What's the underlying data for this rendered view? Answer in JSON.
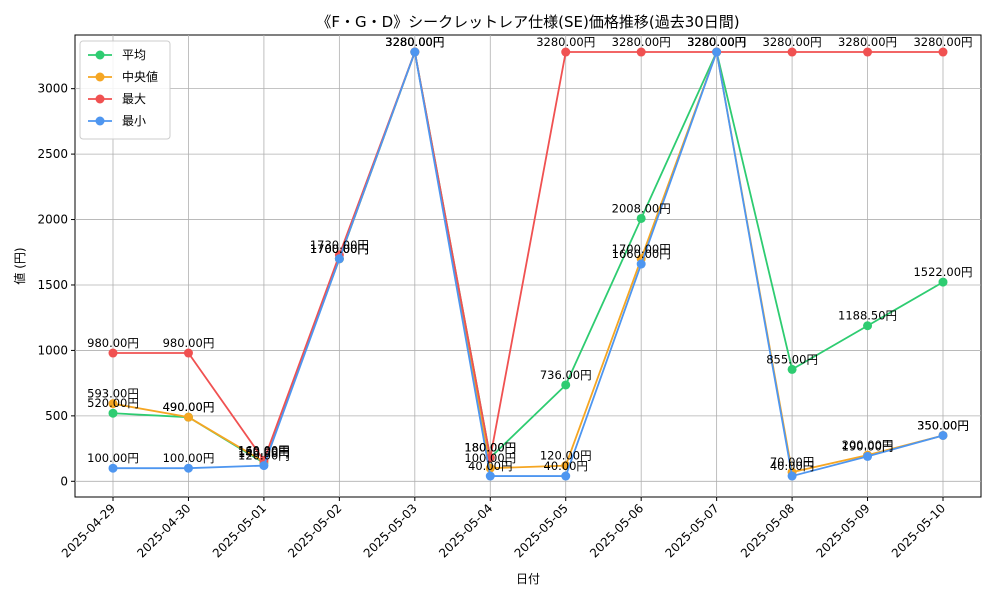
{
  "chart_data": {
    "type": "line",
    "title": "《F・G・D》シークレットレア仕様(SE)価格推移(過去30日間)",
    "xlabel": "日付",
    "ylabel": "値 (円)",
    "categories": [
      "2025-04-29",
      "2025-04-30",
      "2025-05-01",
      "2025-05-02",
      "2025-05-03",
      "2025-05-04",
      "2025-05-05",
      "2025-05-06",
      "2025-05-07",
      "2025-05-08",
      "2025-05-09",
      "2025-05-10"
    ],
    "ylim": [
      -120,
      3410
    ],
    "yticks": [
      0,
      500,
      1000,
      1500,
      2000,
      2500,
      3000
    ],
    "grid": true,
    "legend_position": "top-left",
    "label_suffix": "円",
    "series": [
      {
        "name": "平均",
        "color": "#2ecc71",
        "values": [
          520,
          490,
          140,
          1700,
          3280,
          180,
          736,
          2008,
          3280,
          855,
          1188.5,
          1522
        ]
      },
      {
        "name": "中央値",
        "color": "#f5a623",
        "values": [
          593,
          490,
          150,
          1700,
          3280,
          100,
          120,
          1700,
          3280,
          70,
          200,
          350
        ]
      },
      {
        "name": "最大",
        "color": "#f05151",
        "values": [
          980,
          980,
          160,
          1730,
          3280,
          180,
          3280,
          3280,
          3280,
          3280,
          3280,
          3280
        ]
      },
      {
        "name": "最小",
        "color": "#4e96f0",
        "values": [
          100,
          100,
          120,
          1700,
          3280,
          40,
          40,
          1660,
          3280,
          40,
          190,
          350
        ]
      }
    ]
  }
}
